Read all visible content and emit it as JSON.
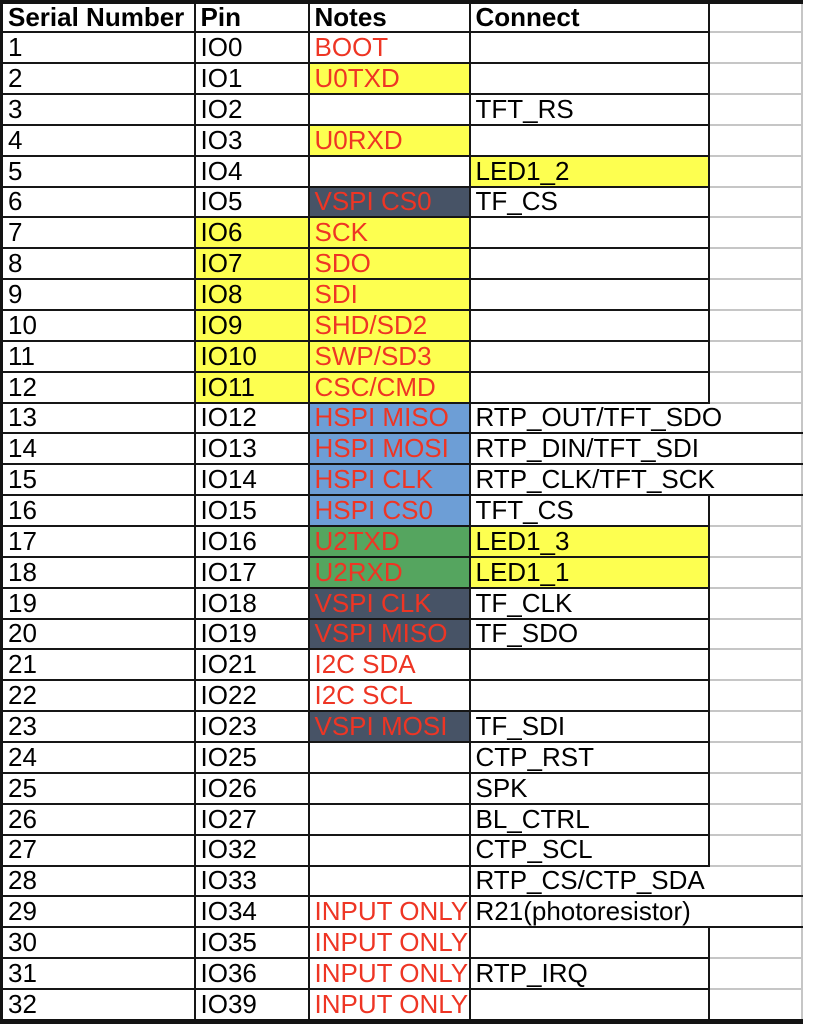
{
  "colors": {
    "note_red": "#ee3524",
    "highlight_yellow": "#fdff50",
    "spi_blue": "#6d9ed6",
    "uart_green": "#55a55f",
    "vspi_slate": "#475366",
    "grid_black": "#161616",
    "grid_light_gray": "#c6c6c6",
    "text_black": "#000000"
  },
  "table": {
    "columns": [
      "Serial Number",
      "Pin",
      "Notes",
      "Connect",
      ""
    ],
    "rows": [
      {
        "sn": "1",
        "pin": "IO0",
        "pin_bg": null,
        "note": "BOOT",
        "note_bg": null,
        "connect": "",
        "connect_bg": null,
        "connect_span2": false
      },
      {
        "sn": "2",
        "pin": "IO1",
        "pin_bg": null,
        "note": "U0TXD",
        "note_bg": "highlight_yellow",
        "connect": "",
        "connect_bg": null,
        "connect_span2": false
      },
      {
        "sn": "3",
        "pin": "IO2",
        "pin_bg": null,
        "note": "",
        "note_bg": null,
        "connect": "TFT_RS",
        "connect_bg": null,
        "connect_span2": false
      },
      {
        "sn": "4",
        "pin": "IO3",
        "pin_bg": null,
        "note": "U0RXD",
        "note_bg": "highlight_yellow",
        "connect": "",
        "connect_bg": null,
        "connect_span2": false
      },
      {
        "sn": "5",
        "pin": "IO4",
        "pin_bg": null,
        "note": "",
        "note_bg": null,
        "connect": "LED1_2",
        "connect_bg": "highlight_yellow",
        "connect_span2": false
      },
      {
        "sn": "6",
        "pin": "IO5",
        "pin_bg": null,
        "note": "VSPI CS0",
        "note_bg": "vspi_slate",
        "connect": "TF_CS",
        "connect_bg": null,
        "connect_span2": false
      },
      {
        "sn": "7",
        "pin": "IO6",
        "pin_bg": "highlight_yellow",
        "note": "SCK",
        "note_bg": "highlight_yellow",
        "connect": "",
        "connect_bg": null,
        "connect_span2": false
      },
      {
        "sn": "8",
        "pin": "IO7",
        "pin_bg": "highlight_yellow",
        "note": "SDO",
        "note_bg": "highlight_yellow",
        "connect": "",
        "connect_bg": null,
        "connect_span2": false
      },
      {
        "sn": "9",
        "pin": "IO8",
        "pin_bg": "highlight_yellow",
        "note": "SDI",
        "note_bg": "highlight_yellow",
        "connect": "",
        "connect_bg": null,
        "connect_span2": false
      },
      {
        "sn": "10",
        "pin": "IO9",
        "pin_bg": "highlight_yellow",
        "note": "SHD/SD2",
        "note_bg": "highlight_yellow",
        "connect": "",
        "connect_bg": null,
        "connect_span2": false
      },
      {
        "sn": "11",
        "pin": "IO10",
        "pin_bg": "highlight_yellow",
        "note": "SWP/SD3",
        "note_bg": "highlight_yellow",
        "connect": "",
        "connect_bg": null,
        "connect_span2": false
      },
      {
        "sn": "12",
        "pin": "IO11",
        "pin_bg": "highlight_yellow",
        "note": "CSC/CMD",
        "note_bg": "highlight_yellow",
        "connect": "",
        "connect_bg": null,
        "connect_span2": false
      },
      {
        "sn": "13",
        "pin": "IO12",
        "pin_bg": null,
        "note": "HSPI MISO",
        "note_bg": "spi_blue",
        "connect": "RTP_OUT/TFT_SDO",
        "connect_bg": null,
        "connect_span2": true
      },
      {
        "sn": "14",
        "pin": "IO13",
        "pin_bg": null,
        "note": "HSPI MOSI",
        "note_bg": "spi_blue",
        "connect": "RTP_DIN/TFT_SDI",
        "connect_bg": null,
        "connect_span2": true
      },
      {
        "sn": "15",
        "pin": "IO14",
        "pin_bg": null,
        "note": "HSPI CLK",
        "note_bg": "spi_blue",
        "connect": "RTP_CLK/TFT_SCK",
        "connect_bg": null,
        "connect_span2": true
      },
      {
        "sn": "16",
        "pin": "IO15",
        "pin_bg": null,
        "note": "HSPI CS0",
        "note_bg": "spi_blue",
        "connect": "TFT_CS",
        "connect_bg": null,
        "connect_span2": false
      },
      {
        "sn": "17",
        "pin": "IO16",
        "pin_bg": null,
        "note": "U2TXD",
        "note_bg": "uart_green",
        "connect": "LED1_3",
        "connect_bg": "highlight_yellow",
        "connect_span2": false
      },
      {
        "sn": "18",
        "pin": "IO17",
        "pin_bg": null,
        "note": "U2RXD",
        "note_bg": "uart_green",
        "connect": "LED1_1",
        "connect_bg": "highlight_yellow",
        "connect_span2": false
      },
      {
        "sn": "19",
        "pin": "IO18",
        "pin_bg": null,
        "note": "VSPI CLK",
        "note_bg": "vspi_slate",
        "connect": "TF_CLK",
        "connect_bg": null,
        "connect_span2": false
      },
      {
        "sn": "20",
        "pin": "IO19",
        "pin_bg": null,
        "note": "VSPI MISO",
        "note_bg": "vspi_slate",
        "connect": "TF_SDO",
        "connect_bg": null,
        "connect_span2": false
      },
      {
        "sn": "21",
        "pin": "IO21",
        "pin_bg": null,
        "note": "I2C SDA",
        "note_bg": null,
        "connect": "",
        "connect_bg": null,
        "connect_span2": false
      },
      {
        "sn": "22",
        "pin": "IO22",
        "pin_bg": null,
        "note": "I2C SCL",
        "note_bg": null,
        "connect": "",
        "connect_bg": null,
        "connect_span2": false
      },
      {
        "sn": "23",
        "pin": "IO23",
        "pin_bg": null,
        "note": "VSPI MOSI",
        "note_bg": "vspi_slate",
        "connect": "TF_SDI",
        "connect_bg": null,
        "connect_span2": false
      },
      {
        "sn": "24",
        "pin": "IO25",
        "pin_bg": null,
        "note": "",
        "note_bg": null,
        "connect": "CTP_RST",
        "connect_bg": null,
        "connect_span2": false
      },
      {
        "sn": "25",
        "pin": "IO26",
        "pin_bg": null,
        "note": "",
        "note_bg": null,
        "connect": "SPK",
        "connect_bg": null,
        "connect_span2": false
      },
      {
        "sn": "26",
        "pin": "IO27",
        "pin_bg": null,
        "note": "",
        "note_bg": null,
        "connect": "BL_CTRL",
        "connect_bg": null,
        "connect_span2": false
      },
      {
        "sn": "27",
        "pin": "IO32",
        "pin_bg": null,
        "note": "",
        "note_bg": null,
        "connect": "CTP_SCL",
        "connect_bg": null,
        "connect_span2": false
      },
      {
        "sn": "28",
        "pin": "IO33",
        "pin_bg": null,
        "note": "",
        "note_bg": null,
        "connect": "RTP_CS/CTP_SDA",
        "connect_bg": null,
        "connect_span2": true
      },
      {
        "sn": "29",
        "pin": "IO34",
        "pin_bg": null,
        "note": "INPUT ONLY",
        "note_bg": null,
        "connect": "R21(photoresistor)",
        "connect_bg": null,
        "connect_span2": true
      },
      {
        "sn": "30",
        "pin": "IO35",
        "pin_bg": null,
        "note": "INPUT ONLY",
        "note_bg": null,
        "connect": "",
        "connect_bg": null,
        "connect_span2": false
      },
      {
        "sn": "31",
        "pin": "IO36",
        "pin_bg": null,
        "note": "INPUT ONLY",
        "note_bg": null,
        "connect": "RTP_IRQ",
        "connect_bg": null,
        "connect_span2": false
      },
      {
        "sn": "32",
        "pin": "IO39",
        "pin_bg": null,
        "note": "INPUT ONLY",
        "note_bg": null,
        "connect": "",
        "connect_bg": null,
        "connect_span2": false
      }
    ]
  }
}
